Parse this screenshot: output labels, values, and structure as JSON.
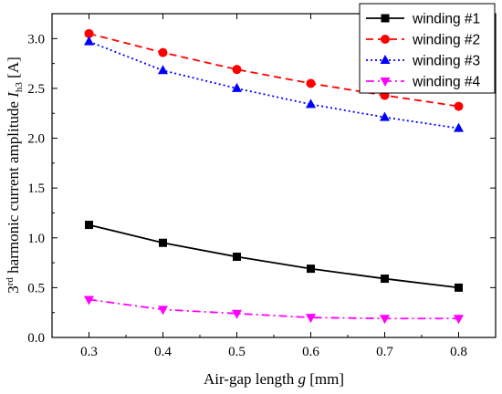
{
  "chart_data": {
    "type": "line",
    "xlabel": "Air-gap length g [mm]",
    "ylabel": "3rd harmonic current amplitude Ih3 [A]",
    "xlim": [
      0.25,
      0.85
    ],
    "ylim": [
      0.0,
      3.25
    ],
    "xticks": [
      "0.3",
      "0.4",
      "0.5",
      "0.6",
      "0.7",
      "0.8"
    ],
    "yticks": [
      "0.0",
      "0.5",
      "1.0",
      "1.5",
      "2.0",
      "2.5",
      "3.0"
    ],
    "x": [
      0.3,
      0.4,
      0.5,
      0.6,
      0.7,
      0.8
    ],
    "grid": false,
    "legend_position": "top-right",
    "series": [
      {
        "name": "winding #1",
        "color": "#000000",
        "line": "solid",
        "marker": "square",
        "values": [
          1.13,
          0.95,
          0.81,
          0.69,
          0.59,
          0.5
        ]
      },
      {
        "name": "winding #2",
        "color": "#ff0000",
        "line": "dashed",
        "marker": "circle",
        "values": [
          3.05,
          2.86,
          2.69,
          2.55,
          2.43,
          2.32
        ]
      },
      {
        "name": "winding #3",
        "color": "#0000ff",
        "line": "dotted",
        "marker": "triangle-up",
        "values": [
          2.97,
          2.68,
          2.5,
          2.34,
          2.21,
          2.1
        ]
      },
      {
        "name": "winding #4",
        "color": "#ff00ff",
        "line": "dash-dot",
        "marker": "triangle-down",
        "values": [
          0.38,
          0.28,
          0.24,
          0.2,
          0.19,
          0.19
        ]
      }
    ]
  }
}
